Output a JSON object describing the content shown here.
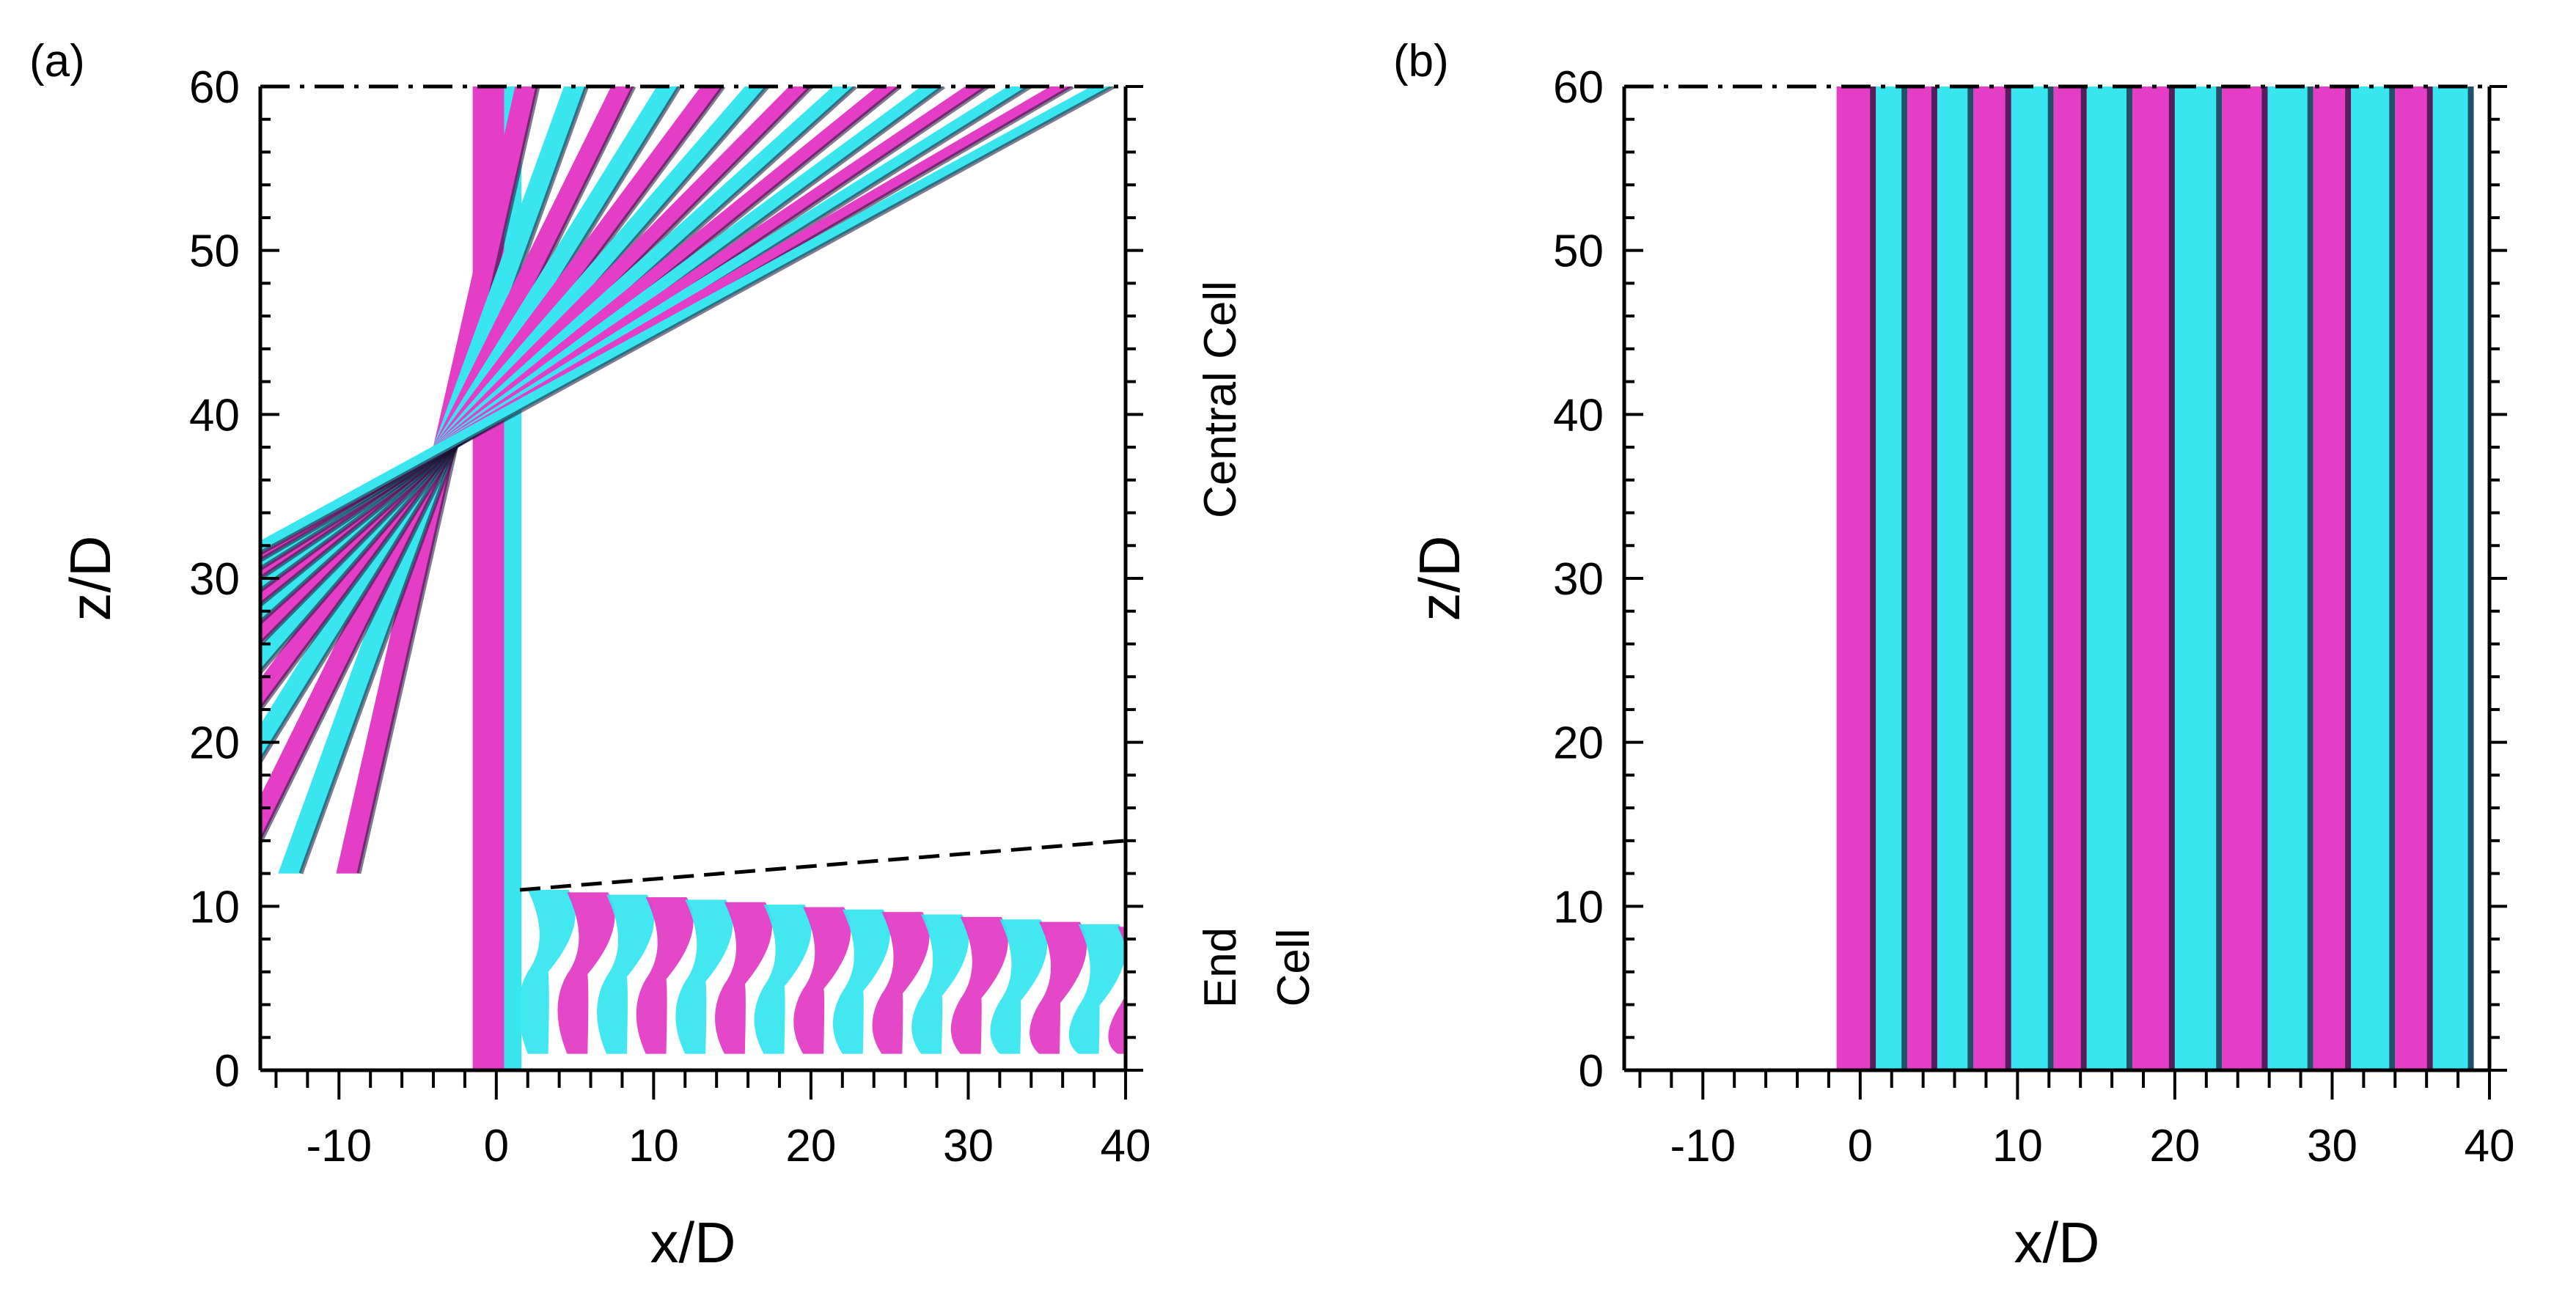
{
  "colors": {
    "cyan": "#39e6ef",
    "magenta": "#e33ec5",
    "dark_shade": "#1a1030",
    "axis": "#000000",
    "background": "#ffffff"
  },
  "chart_data": [
    {
      "type": "contour",
      "panel_label": "(a)",
      "xlabel": "x/D",
      "ylabel": "z/D",
      "xlim": [
        -15,
        40
      ],
      "ylim": [
        0,
        60
      ],
      "xticks": [
        -10,
        0,
        10,
        20,
        30,
        40
      ],
      "xtick_labels": [
        "-10",
        "0",
        "10",
        "20",
        "30",
        "40"
      ],
      "yticks": [
        0,
        10,
        20,
        30,
        40,
        50,
        60
      ],
      "ytick_labels": [
        "0",
        "10",
        "20",
        "30",
        "40",
        "50",
        "60"
      ],
      "annotations": [
        {
          "text": "Central Cell",
          "z_range": [
            30,
            55
          ]
        },
        {
          "lines": [
            "End",
            "Cell"
          ],
          "z_range": [
            0,
            12
          ]
        }
      ],
      "cell_boundary": {
        "x": [
          1.5,
          40
        ],
        "z": [
          11,
          14
        ]
      },
      "symmetry_line_z": 60,
      "vortex_pattern": "oblique",
      "streak_x_at_top": [
        1.2,
        4.3,
        7.3,
        10.2,
        13.0,
        15.8,
        18.6,
        21.4,
        24.2,
        27.0,
        29.8,
        32.5,
        35.2,
        37.8
      ]
    },
    {
      "type": "contour",
      "panel_label": "(b)",
      "xlabel": "x/D",
      "ylabel": "z/D",
      "xlim": [
        -15,
        40
      ],
      "ylim": [
        0,
        60
      ],
      "xticks": [
        -10,
        0,
        10,
        20,
        30,
        40
      ],
      "xtick_labels": [
        "-10",
        "0",
        "10",
        "20",
        "30",
        "40"
      ],
      "yticks": [
        0,
        10,
        20,
        30,
        40,
        50,
        60
      ],
      "ytick_labels": [
        "0",
        "10",
        "20",
        "30",
        "40",
        "50",
        "60"
      ],
      "symmetry_line_z": 60,
      "vortex_pattern": "parallel",
      "bands": [
        {
          "x0": -1.5,
          "x1": 1.0,
          "color": "magenta"
        },
        {
          "x0": 1.0,
          "x1": 3.0,
          "color": "cyan"
        },
        {
          "x0": 3.0,
          "x1": 4.9,
          "color": "magenta"
        },
        {
          "x0": 4.9,
          "x1": 7.2,
          "color": "cyan"
        },
        {
          "x0": 7.2,
          "x1": 9.6,
          "color": "magenta"
        },
        {
          "x0": 9.6,
          "x1": 12.3,
          "color": "cyan"
        },
        {
          "x0": 12.3,
          "x1": 14.4,
          "color": "magenta"
        },
        {
          "x0": 14.4,
          "x1": 17.3,
          "color": "cyan"
        },
        {
          "x0": 17.3,
          "x1": 20.0,
          "color": "magenta"
        },
        {
          "x0": 20.0,
          "x1": 23.0,
          "color": "cyan"
        },
        {
          "x0": 23.0,
          "x1": 25.9,
          "color": "magenta"
        },
        {
          "x0": 25.9,
          "x1": 28.8,
          "color": "cyan"
        },
        {
          "x0": 28.8,
          "x1": 31.2,
          "color": "magenta"
        },
        {
          "x0": 31.2,
          "x1": 34.0,
          "color": "cyan"
        },
        {
          "x0": 34.0,
          "x1": 36.4,
          "color": "magenta"
        },
        {
          "x0": 36.4,
          "x1": 39.0,
          "color": "cyan"
        }
      ]
    }
  ]
}
